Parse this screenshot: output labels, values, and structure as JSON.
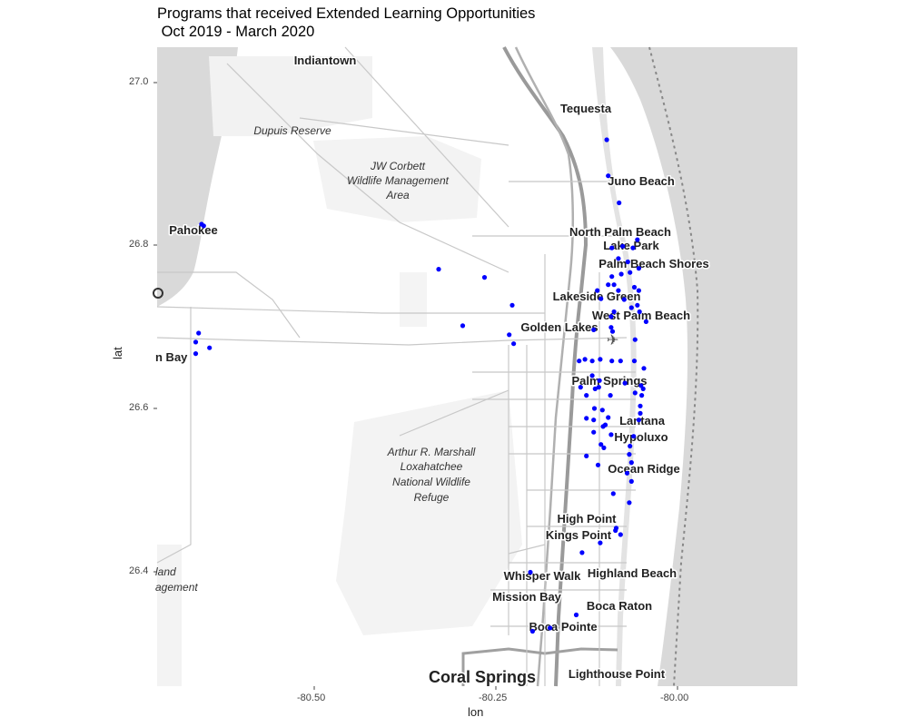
{
  "title_line1": "Programs that received Extended Learning Opportunities",
  "title_line2": " Oct 2019 - March 2020",
  "axes": {
    "xlabel": "lon",
    "ylabel": "lat",
    "x_ticks": [
      "-80.50",
      "-80.25",
      "-80.00"
    ],
    "y_ticks": [
      "27.0",
      "26.8",
      "26.6",
      "26.4"
    ]
  },
  "map": {
    "point_color": "#0000ff",
    "ocean_color": "#d9d9d9",
    "places": [
      "Indiantown",
      "Tequesta",
      "Juno Beach",
      "Pahokee",
      "North Palm Beach",
      "Lake Park",
      "Palm Beach Shores",
      "Lakeside Green",
      "West Palm Beach",
      "Golden Lakes",
      "n Bay",
      "Palm Springs",
      "Lantana",
      "Hypoluxo",
      "Ocean Ridge",
      "High Point",
      "Kings Point",
      "Whisper Walk",
      "Highland Beach",
      "Mission Bay",
      "Boca Raton",
      "Boca Pointe",
      "Coral Springs",
      "Lighthouse Point"
    ],
    "areas": {
      "dupuis": "Dupuis Reserve",
      "jw1": "JW Corbett",
      "jw2": "Wildlife Management",
      "jw3": "Area",
      "ar1": "Arthur R. Marshall",
      "ar2": "Loxahatchee",
      "ar3": "National Wildlife",
      "ar4": "Refuge",
      "el1": "land",
      "el2": "agement"
    }
  },
  "chart_data": {
    "type": "scatter",
    "title": "Programs that received Extended Learning Opportunities\n Oct 2019 - March 2020",
    "xlabel": "lon",
    "ylabel": "lat",
    "xlim": [
      -80.72,
      -79.84
    ],
    "ylim": [
      26.265,
      27.045
    ],
    "grid": false,
    "series": [
      {
        "points": [
          [
            -80.659,
            26.829
          ],
          [
            -80.656,
            26.827
          ],
          [
            -80.663,
            26.696
          ],
          [
            -80.667,
            26.685
          ],
          [
            -80.667,
            26.671
          ],
          [
            -80.648,
            26.678
          ],
          [
            -80.333,
            26.774
          ],
          [
            -80.27,
            26.764
          ],
          [
            -80.232,
            26.73
          ],
          [
            -80.3,
            26.705
          ],
          [
            -80.236,
            26.694
          ],
          [
            -80.23,
            26.683
          ],
          [
            -80.102,
            26.932
          ],
          [
            -80.1,
            26.888
          ],
          [
            -80.085,
            26.855
          ],
          [
            -80.06,
            26.81
          ],
          [
            -80.066,
            26.8
          ],
          [
            -80.08,
            26.802
          ],
          [
            -80.095,
            26.8
          ],
          [
            -80.086,
            26.787
          ],
          [
            -80.073,
            26.783
          ],
          [
            -80.07,
            26.77
          ],
          [
            -80.058,
            26.775
          ],
          [
            -80.082,
            26.768
          ],
          [
            -80.095,
            26.765
          ],
          [
            -80.1,
            26.755
          ],
          [
            -80.092,
            26.755
          ],
          [
            -80.064,
            26.752
          ],
          [
            -80.058,
            26.748
          ],
          [
            -80.086,
            26.748
          ],
          [
            -80.115,
            26.748
          ],
          [
            -80.11,
            26.738
          ],
          [
            -80.078,
            26.737
          ],
          [
            -80.068,
            26.727
          ],
          [
            -80.06,
            26.73
          ],
          [
            -80.057,
            26.722
          ],
          [
            -80.092,
            26.722
          ],
          [
            -80.096,
            26.716
          ],
          [
            -80.048,
            26.71
          ],
          [
            -80.096,
            26.703
          ],
          [
            -80.094,
            26.698
          ],
          [
            -80.063,
            26.688
          ],
          [
            -80.12,
            26.7
          ],
          [
            -80.132,
            26.664
          ],
          [
            -80.14,
            26.662
          ],
          [
            -80.122,
            26.662
          ],
          [
            -80.111,
            26.664
          ],
          [
            -80.095,
            26.662
          ],
          [
            -80.083,
            26.662
          ],
          [
            -80.064,
            26.662
          ],
          [
            -80.122,
            26.644
          ],
          [
            -80.112,
            26.638
          ],
          [
            -80.051,
            26.653
          ],
          [
            -80.077,
            26.635
          ],
          [
            -80.055,
            26.632
          ],
          [
            -80.052,
            26.628
          ],
          [
            -80.063,
            26.623
          ],
          [
            -80.054,
            26.62
          ],
          [
            -80.118,
            26.628
          ],
          [
            -80.113,
            26.63
          ],
          [
            -80.138,
            26.63
          ],
          [
            -80.13,
            26.62
          ],
          [
            -80.097,
            26.62
          ],
          [
            -80.119,
            26.604
          ],
          [
            -80.108,
            26.602
          ],
          [
            -80.056,
            26.607
          ],
          [
            -80.056,
            26.598
          ],
          [
            -80.13,
            26.592
          ],
          [
            -80.12,
            26.59
          ],
          [
            -80.1,
            26.593
          ],
          [
            -80.058,
            26.59
          ],
          [
            -80.107,
            26.582
          ],
          [
            -80.104,
            26.584
          ],
          [
            -80.12,
            26.575
          ],
          [
            -80.096,
            26.572
          ],
          [
            -80.065,
            26.57
          ],
          [
            -80.11,
            26.56
          ],
          [
            -80.106,
            26.556
          ],
          [
            -80.07,
            26.558
          ],
          [
            -80.071,
            26.548
          ],
          [
            -80.13,
            26.546
          ],
          [
            -80.068,
            26.538
          ],
          [
            -80.114,
            26.535
          ],
          [
            -80.074,
            26.525
          ],
          [
            -80.068,
            26.515
          ],
          [
            -80.093,
            26.5
          ],
          [
            -80.071,
            26.489
          ],
          [
            -80.089,
            26.458
          ],
          [
            -80.09,
            26.455
          ],
          [
            -80.083,
            26.45
          ],
          [
            -80.111,
            26.44
          ],
          [
            -80.136,
            26.428
          ],
          [
            -80.207,
            26.404
          ],
          [
            -80.144,
            26.352
          ],
          [
            -80.18,
            26.336
          ],
          [
            -80.204,
            26.332
          ]
        ]
      }
    ]
  }
}
